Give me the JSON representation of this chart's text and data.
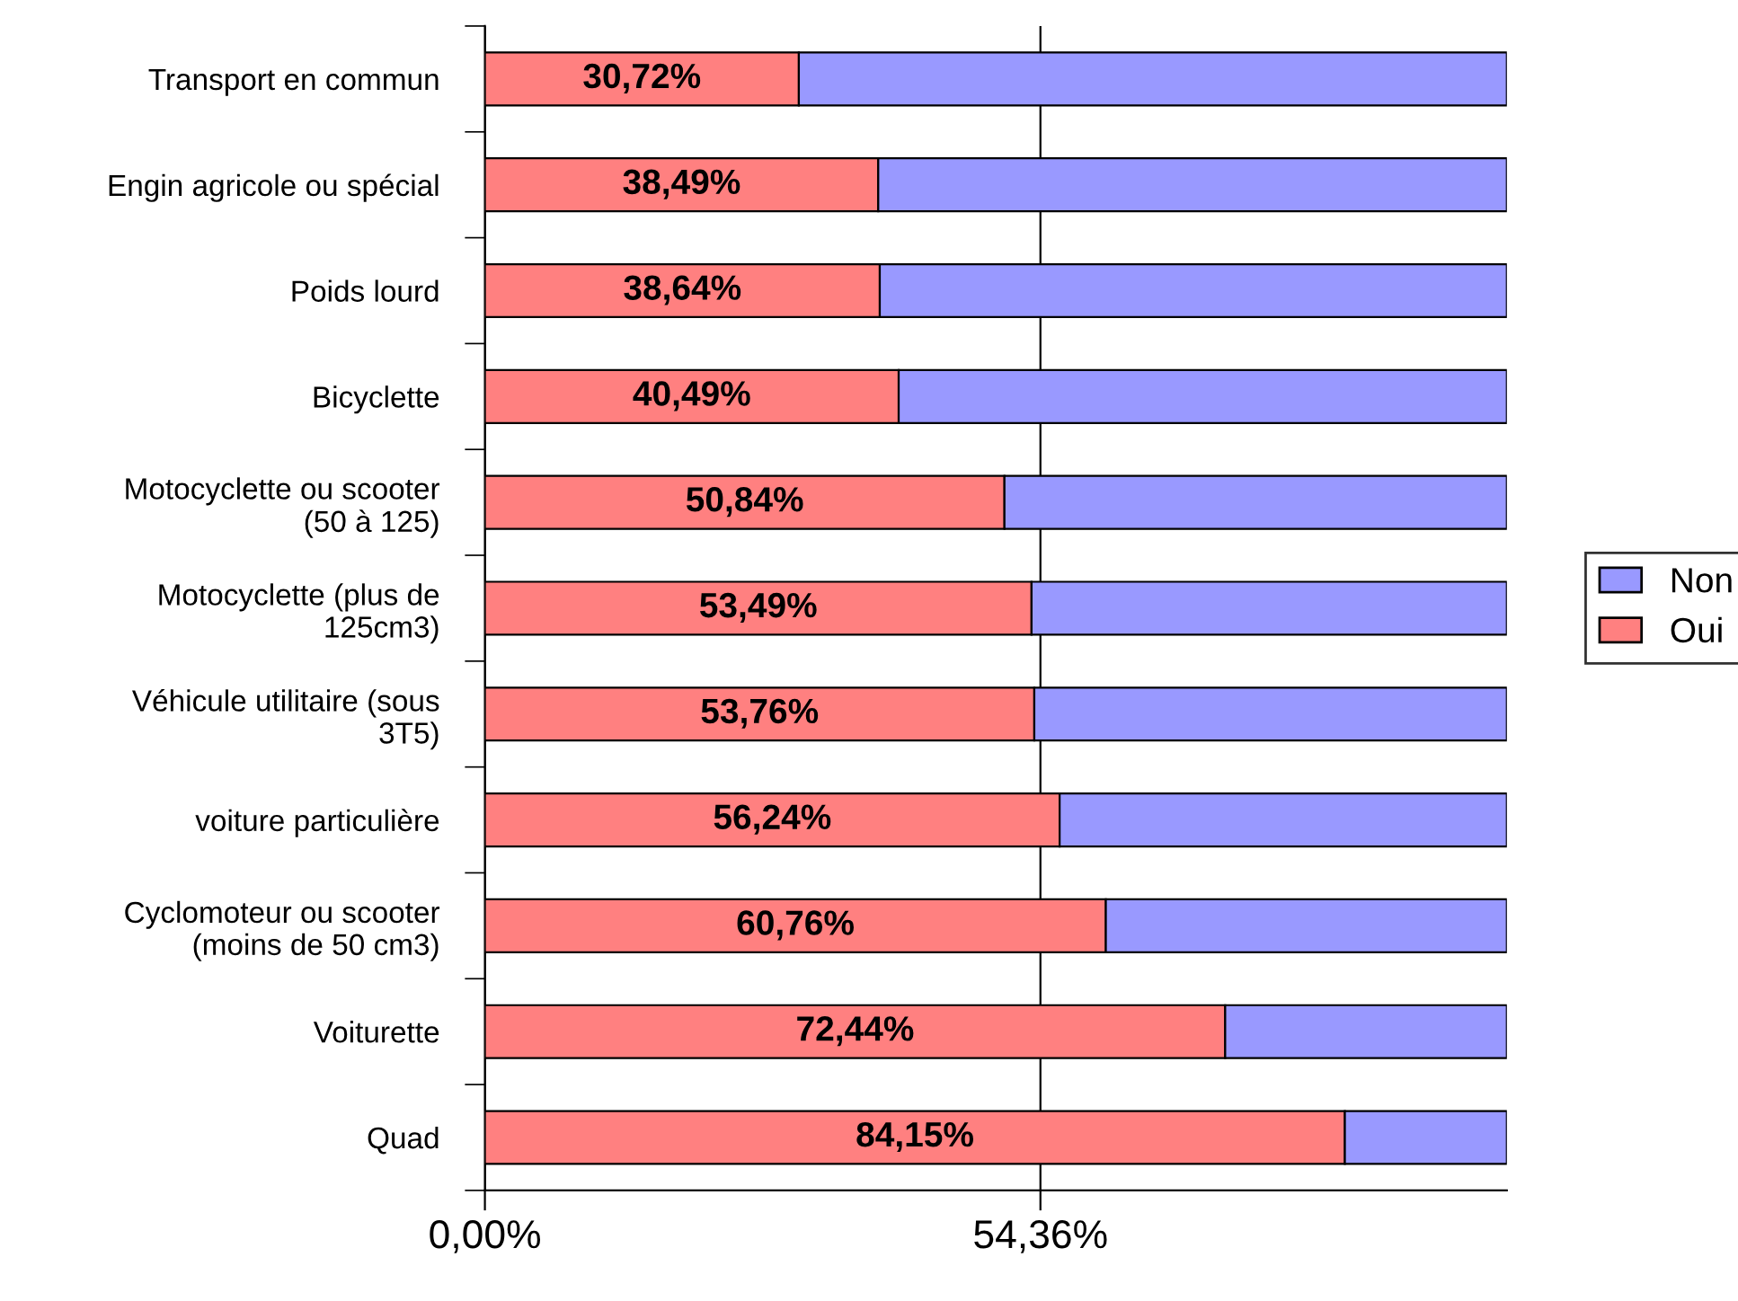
{
  "chart_data": {
    "type": "bar",
    "orientation": "horizontal",
    "stacked": true,
    "categories": [
      "Transport en commun",
      "Engin agricole ou spécial",
      "Poids lourd",
      "Bicyclette",
      "Motocyclette ou scooter\n(50 à 125)",
      "Motocyclette (plus de\n125cm3)",
      "Véhicule utilitaire (sous\n3T5)",
      "voiture particulière",
      "Cyclomoteur ou scooter\n(moins de 50 cm3)",
      "Voiturette",
      "Quad"
    ],
    "series": [
      {
        "name": "Oui",
        "color": "#ff8080",
        "values": [
          30.72,
          38.49,
          38.64,
          40.49,
          50.84,
          53.49,
          53.76,
          56.24,
          60.76,
          72.44,
          84.15
        ],
        "value_labels": [
          "30,72%",
          "38,49%",
          "38,64%",
          "40,49%",
          "50,84%",
          "53,49%",
          "53,76%",
          "56,24%",
          "60,76%",
          "72,44%",
          "84,15%"
        ]
      },
      {
        "name": "Non",
        "color": "#9999ff",
        "values": [
          69.28,
          61.51,
          61.36,
          59.51,
          49.16,
          46.51,
          46.24,
          43.76,
          39.24,
          27.56,
          15.85
        ]
      }
    ],
    "xlim": [
      0,
      100
    ],
    "xticks": [
      {
        "value": 0,
        "label": "0,00%"
      },
      {
        "value": 54.36,
        "label": "54,36%"
      }
    ],
    "grid": "x",
    "legend": "right"
  }
}
